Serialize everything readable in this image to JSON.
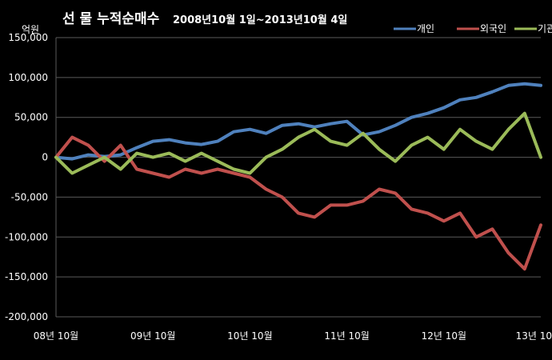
{
  "chart_data": {
    "type": "line",
    "title_main": "선 물  누적순매수",
    "title_sub": "2008년10월 1일~2013년10월 4일",
    "ylabel": "억원",
    "ylim": [
      -200000,
      150000
    ],
    "yticks": [
      150000,
      100000,
      50000,
      0,
      -50000,
      -100000,
      -150000,
      -200000
    ],
    "ytick_labels": [
      "150,000",
      "100,000",
      "50,000",
      "0",
      "-50,000",
      "-100,000",
      "-150,000",
      "-200,000"
    ],
    "xlim": [
      0,
      60
    ],
    "xticks": [
      0,
      12,
      24,
      36,
      48,
      60
    ],
    "xtick_labels": [
      "08년 10월",
      "09년 10월",
      "10년 10월",
      "11년 10월",
      "12년 10월",
      "13년 10"
    ],
    "grid": "horizontal",
    "legend_position": "top-right",
    "series": [
      {
        "name": "개인",
        "color": "#4f81bd",
        "x": [
          0,
          2,
          4,
          6,
          8,
          10,
          12,
          14,
          16,
          18,
          20,
          22,
          24,
          26,
          28,
          30,
          32,
          34,
          36,
          38,
          40,
          42,
          44,
          46,
          48,
          50,
          52,
          54,
          56,
          58,
          60
        ],
        "values": [
          0,
          -2000,
          3000,
          1000,
          3000,
          12000,
          20000,
          22000,
          18000,
          16000,
          20000,
          32000,
          35000,
          30000,
          40000,
          42000,
          38000,
          42000,
          45000,
          28000,
          32000,
          40000,
          50000,
          55000,
          62000,
          72000,
          75000,
          82000,
          90000,
          92000,
          90000
        ]
      },
      {
        "name": "외국인",
        "color": "#c0504d",
        "x": [
          0,
          2,
          4,
          6,
          8,
          10,
          12,
          14,
          16,
          18,
          20,
          22,
          24,
          26,
          28,
          30,
          32,
          34,
          36,
          38,
          40,
          42,
          44,
          46,
          48,
          50,
          52,
          54,
          56,
          58,
          60
        ],
        "values": [
          0,
          25000,
          15000,
          -5000,
          15000,
          -15000,
          -20000,
          -25000,
          -15000,
          -20000,
          -15000,
          -20000,
          -25000,
          -40000,
          -50000,
          -70000,
          -75000,
          -60000,
          -60000,
          -55000,
          -40000,
          -45000,
          -65000,
          -70000,
          -80000,
          -70000,
          -100000,
          -90000,
          -120000,
          -140000,
          -85000
        ]
      },
      {
        "name": "기관",
        "color": "#9bbb59",
        "x": [
          0,
          2,
          4,
          6,
          8,
          10,
          12,
          14,
          16,
          18,
          20,
          22,
          24,
          26,
          28,
          30,
          32,
          34,
          36,
          38,
          40,
          42,
          44,
          46,
          48,
          50,
          52,
          54,
          56,
          58,
          60
        ],
        "values": [
          0,
          -20000,
          -10000,
          0,
          -15000,
          5000,
          0,
          5000,
          -5000,
          5000,
          -5000,
          -15000,
          -20000,
          0,
          10000,
          25000,
          35000,
          20000,
          15000,
          30000,
          10000,
          -5000,
          15000,
          25000,
          10000,
          35000,
          20000,
          10000,
          35000,
          55000,
          0
        ]
      }
    ]
  }
}
